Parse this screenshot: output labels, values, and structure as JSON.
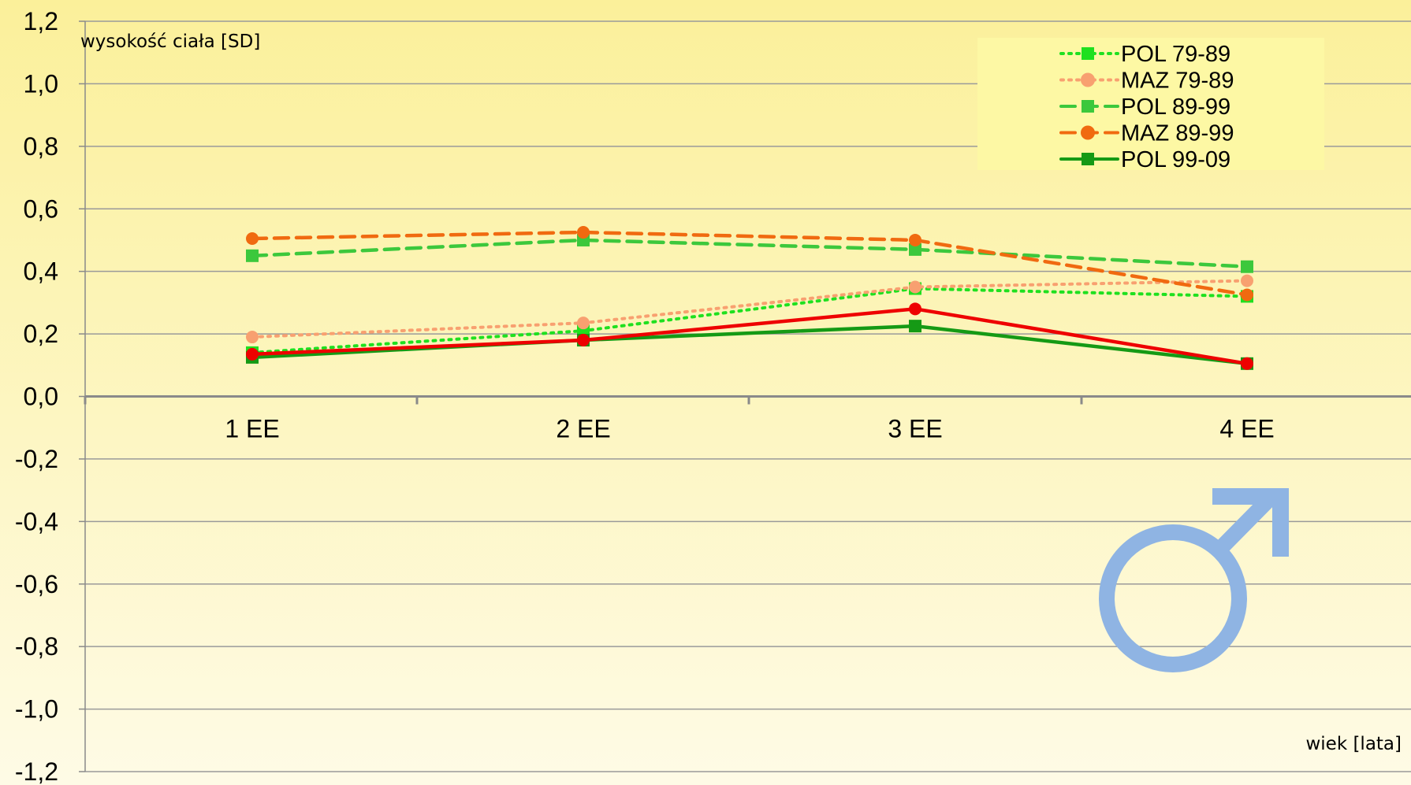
{
  "chart_data": {
    "type": "line",
    "categories": [
      "1 EE",
      "2 EE",
      "3 EE",
      "4 EE"
    ],
    "ylabel": "wysokość ciała [SD]",
    "xlabel": "wiek [lata]",
    "ylim": [
      -1.2,
      1.2
    ],
    "y_step": 0.2,
    "y_tick_labels": [
      "1,2",
      "1,0",
      "0,8",
      "0,6",
      "0,4",
      "0,2",
      "0,0",
      "-0,2",
      "-0,4",
      "-0,6",
      "-0,8",
      "-1,0",
      "-1,2"
    ],
    "grid": true,
    "legend_position": "top-right",
    "series": [
      {
        "name": "POL 79-89",
        "values": [
          0.14,
          0.21,
          0.345,
          0.32
        ],
        "color": "#1fe01f",
        "dash": "dotted",
        "marker": "square",
        "in_legend": true
      },
      {
        "name": "MAZ 79-89",
        "values": [
          0.19,
          0.235,
          0.35,
          0.37
        ],
        "color": "#f8a070",
        "dash": "dotted",
        "marker": "circle",
        "in_legend": true
      },
      {
        "name": "POL 89-99",
        "values": [
          0.45,
          0.5,
          0.47,
          0.415
        ],
        "color": "#3cc83c",
        "dash": "dashed",
        "marker": "square",
        "in_legend": true
      },
      {
        "name": "MAZ 89-99",
        "values": [
          0.505,
          0.525,
          0.5,
          0.325
        ],
        "color": "#f06a10",
        "dash": "dashed",
        "marker": "circle",
        "in_legend": true
      },
      {
        "name": "POL 99-09",
        "values": [
          0.125,
          0.18,
          0.225,
          0.105
        ],
        "color": "#159a15",
        "dash": "solid",
        "marker": "square",
        "in_legend": true
      },
      {
        "values": [
          0.135,
          0.18,
          0.28,
          0.105
        ],
        "color": "#ee0000",
        "dash": "solid",
        "marker": "circle",
        "in_legend": false
      }
    ],
    "decoration": {
      "icon": "male-symbol-icon",
      "color": "#8fb4e3"
    }
  }
}
